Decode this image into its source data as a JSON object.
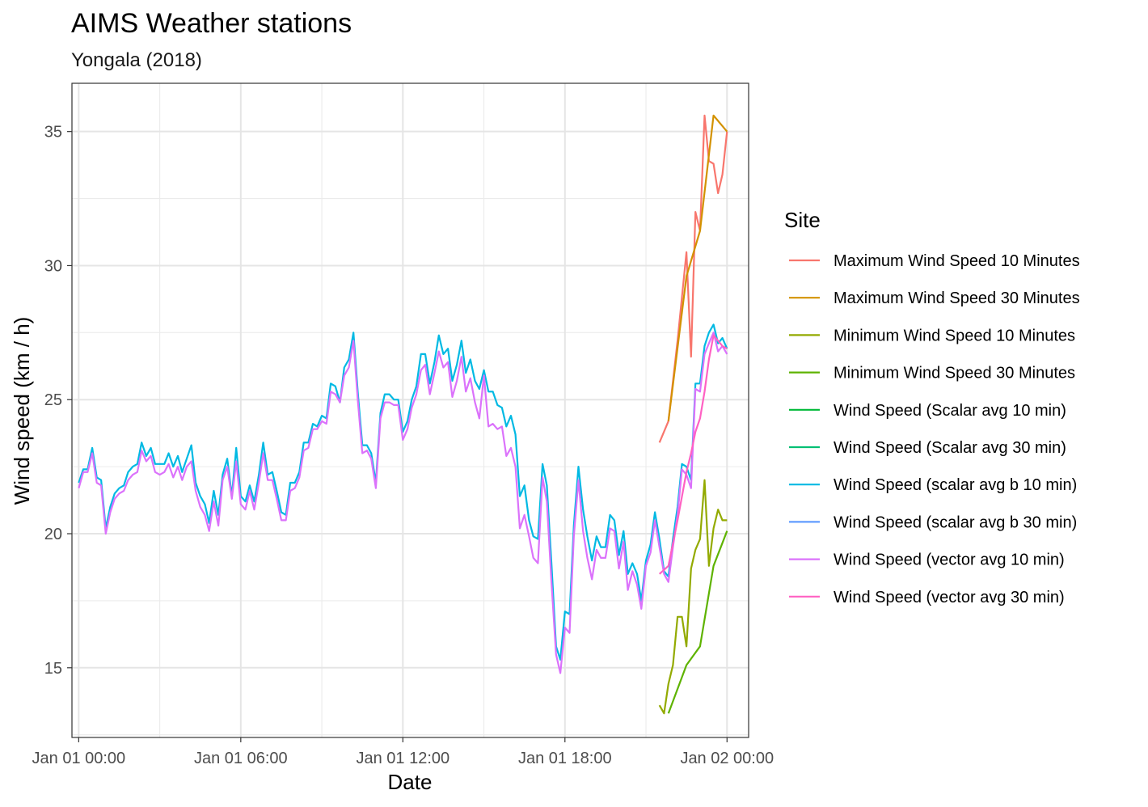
{
  "chart_data": {
    "type": "line",
    "title": "AIMS Weather stations",
    "subtitle": "Yongala (2018)",
    "xlabel": "Date",
    "ylabel": "Wind speed (km / h)",
    "legend_title": "Site",
    "legend_position": "right",
    "grid": true,
    "xlim": [
      -0.25,
      24.8
    ],
    "ylim": [
      12.4,
      36.8
    ],
    "x_ticks": [
      {
        "value": 0,
        "label": "Jan 01 00:00"
      },
      {
        "value": 6,
        "label": "Jan 01 06:00"
      },
      {
        "value": 12,
        "label": "Jan 01 12:00"
      },
      {
        "value": 18,
        "label": "Jan 01 18:00"
      },
      {
        "value": 24,
        "label": "Jan 02 00:00"
      }
    ],
    "y_ticks": [
      15,
      20,
      25,
      30,
      35
    ],
    "series": [
      {
        "name": "Maximum Wind Speed 10 Minutes",
        "color": "#F8766D",
        "x": [
          21.5,
          21.83,
          22.17,
          22.5,
          22.67,
          22.83,
          23.0,
          23.17,
          23.33,
          23.5,
          23.67,
          23.83,
          24.0
        ],
        "y": [
          23.4,
          24.2,
          27.2,
          30.5,
          26.6,
          32.0,
          31.3,
          35.6,
          33.9,
          33.8,
          32.7,
          33.4,
          35.0
        ]
      },
      {
        "name": "Maximum Wind Speed 30 Minutes",
        "color": "#D39200",
        "x": [
          21.83,
          22.5,
          23.0,
          23.5,
          24.0
        ],
        "y": [
          24.2,
          29.6,
          31.3,
          35.6,
          35.0
        ]
      },
      {
        "name": "Minimum Wind Speed 10 Minutes",
        "color": "#93AA00",
        "x": [
          21.5,
          21.67,
          21.83,
          22.0,
          22.17,
          22.33,
          22.5,
          22.67,
          22.83,
          23.0,
          23.17,
          23.33,
          23.5,
          23.67,
          23.83,
          24.0
        ],
        "y": [
          13.6,
          13.3,
          14.4,
          15.1,
          16.9,
          16.9,
          15.8,
          18.7,
          19.4,
          19.8,
          22.0,
          18.8,
          20.2,
          20.9,
          20.5,
          20.5
        ]
      },
      {
        "name": "Minimum Wind Speed 30 Minutes",
        "color": "#5EB300",
        "x": [
          21.83,
          22.5,
          23.0,
          23.5,
          24.0
        ],
        "y": [
          13.3,
          15.1,
          15.8,
          18.8,
          20.1
        ]
      },
      {
        "name": "Wind Speed (Scalar avg 10 min)",
        "color": "#00BA38",
        "x": [],
        "y": []
      },
      {
        "name": "Wind Speed (Scalar avg 30 min)",
        "color": "#00BF74",
        "x": [],
        "y": []
      },
      {
        "name": "Wind Speed (scalar avg b 10 min)",
        "color": "#00B9E3",
        "x": [
          0.0,
          0.17,
          0.33,
          0.5,
          0.67,
          0.83,
          1.0,
          1.17,
          1.33,
          1.5,
          1.67,
          1.83,
          2.0,
          2.17,
          2.33,
          2.5,
          2.67,
          2.83,
          3.0,
          3.17,
          3.33,
          3.5,
          3.67,
          3.83,
          4.0,
          4.17,
          4.33,
          4.5,
          4.67,
          4.83,
          5.0,
          5.17,
          5.33,
          5.5,
          5.67,
          5.83,
          6.0,
          6.17,
          6.33,
          6.5,
          6.67,
          6.83,
          7.0,
          7.17,
          7.33,
          7.5,
          7.67,
          7.83,
          8.0,
          8.17,
          8.33,
          8.5,
          8.67,
          8.83,
          9.0,
          9.17,
          9.33,
          9.5,
          9.67,
          9.83,
          10.0,
          10.17,
          10.33,
          10.5,
          10.67,
          10.83,
          11.0,
          11.17,
          11.33,
          11.5,
          11.67,
          11.83,
          12.0,
          12.17,
          12.33,
          12.5,
          12.67,
          12.83,
          13.0,
          13.17,
          13.33,
          13.5,
          13.67,
          13.83,
          14.0,
          14.17,
          14.33,
          14.5,
          14.67,
          14.83,
          15.0,
          15.17,
          15.33,
          15.5,
          15.67,
          15.83,
          16.0,
          16.17,
          16.33,
          16.5,
          16.67,
          16.83,
          17.0,
          17.17,
          17.33,
          17.5,
          17.67,
          17.83,
          18.0,
          18.17,
          18.33,
          18.5,
          18.67,
          18.83,
          19.0,
          19.17,
          19.33,
          19.5,
          19.67,
          19.83,
          20.0,
          20.17,
          20.33,
          20.5,
          20.67,
          20.83,
          21.0,
          21.17,
          21.33,
          21.5,
          21.67,
          21.83,
          22.0,
          22.17,
          22.33,
          22.5,
          22.67,
          22.83,
          23.0,
          23.17,
          23.33,
          23.5,
          23.67,
          23.83,
          24.0
        ],
        "y": [
          21.9,
          22.4,
          22.4,
          23.2,
          22.1,
          22.0,
          20.2,
          21.0,
          21.5,
          21.7,
          21.8,
          22.3,
          22.5,
          22.6,
          23.4,
          22.9,
          23.2,
          22.6,
          22.6,
          22.6,
          23.0,
          22.5,
          22.9,
          22.3,
          22.8,
          23.3,
          21.9,
          21.4,
          21.1,
          20.4,
          21.6,
          20.7,
          22.2,
          22.8,
          21.4,
          23.2,
          21.4,
          21.2,
          21.8,
          21.2,
          22.2,
          23.4,
          22.2,
          22.3,
          21.6,
          20.8,
          20.7,
          21.9,
          21.9,
          22.3,
          23.4,
          23.4,
          24.1,
          24.0,
          24.4,
          24.3,
          25.6,
          25.5,
          24.9,
          26.2,
          26.5,
          27.5,
          25.3,
          23.3,
          23.3,
          23.0,
          21.9,
          24.5,
          25.2,
          25.2,
          25.0,
          25.0,
          23.8,
          24.2,
          25.0,
          25.5,
          26.7,
          26.7,
          25.6,
          26.4,
          27.4,
          26.7,
          26.9,
          25.7,
          26.3,
          27.2,
          26.0,
          26.5,
          25.7,
          25.4,
          26.1,
          25.3,
          25.3,
          24.8,
          24.7,
          24.0,
          24.4,
          23.7,
          21.4,
          21.8,
          20.5,
          19.9,
          19.8,
          22.6,
          21.8,
          18.9,
          15.8,
          15.3,
          17.1,
          17.0,
          20.3,
          22.5,
          20.9,
          19.9,
          19.0,
          19.9,
          19.5,
          19.5,
          20.7,
          20.5,
          19.2,
          20.1,
          18.5,
          18.9,
          18.5,
          17.5,
          19.0,
          19.6,
          20.8,
          19.8,
          18.6,
          18.4,
          19.8,
          21.0,
          22.6,
          22.5,
          22.0,
          25.6,
          25.6,
          27.0,
          27.5,
          27.8,
          27.1,
          27.3,
          26.9
        ]
      },
      {
        "name": "Wind Speed (scalar avg b 30 min)",
        "color": "#619CFF",
        "x": [],
        "y": []
      },
      {
        "name": "Wind Speed (vector avg 10 min)",
        "color": "#DB72FB",
        "x": [
          0.0,
          0.17,
          0.33,
          0.5,
          0.67,
          0.83,
          1.0,
          1.17,
          1.33,
          1.5,
          1.67,
          1.83,
          2.0,
          2.17,
          2.33,
          2.5,
          2.67,
          2.83,
          3.0,
          3.17,
          3.33,
          3.5,
          3.67,
          3.83,
          4.0,
          4.17,
          4.33,
          4.5,
          4.67,
          4.83,
          5.0,
          5.17,
          5.33,
          5.5,
          5.67,
          5.83,
          6.0,
          6.17,
          6.33,
          6.5,
          6.67,
          6.83,
          7.0,
          7.17,
          7.33,
          7.5,
          7.67,
          7.83,
          8.0,
          8.17,
          8.33,
          8.5,
          8.67,
          8.83,
          9.0,
          9.17,
          9.33,
          9.5,
          9.67,
          9.83,
          10.0,
          10.17,
          10.33,
          10.5,
          10.67,
          10.83,
          11.0,
          11.17,
          11.33,
          11.5,
          11.67,
          11.83,
          12.0,
          12.17,
          12.33,
          12.5,
          12.67,
          12.83,
          13.0,
          13.17,
          13.33,
          13.5,
          13.67,
          13.83,
          14.0,
          14.17,
          14.33,
          14.5,
          14.67,
          14.83,
          15.0,
          15.17,
          15.33,
          15.5,
          15.67,
          15.83,
          16.0,
          16.17,
          16.33,
          16.5,
          16.67,
          16.83,
          17.0,
          17.17,
          17.33,
          17.5,
          17.67,
          17.83,
          18.0,
          18.17,
          18.33,
          18.5,
          18.67,
          18.83,
          19.0,
          19.17,
          19.33,
          19.5,
          19.67,
          19.83,
          20.0,
          20.17,
          20.33,
          20.5,
          20.67,
          20.83,
          21.0,
          21.17,
          21.33,
          21.5,
          21.67,
          21.83,
          22.0,
          22.17,
          22.33,
          22.5,
          22.67,
          22.83,
          23.0,
          23.17,
          23.33,
          23.5,
          23.67,
          23.83,
          24.0
        ],
        "y": [
          21.7,
          22.3,
          22.3,
          23.0,
          21.9,
          21.8,
          20.0,
          20.8,
          21.3,
          21.5,
          21.6,
          22.0,
          22.2,
          22.3,
          23.1,
          22.7,
          22.9,
          22.3,
          22.2,
          22.3,
          22.6,
          22.1,
          22.5,
          22.0,
          22.5,
          22.7,
          21.6,
          21.0,
          20.7,
          20.1,
          21.2,
          20.3,
          22.0,
          22.5,
          21.3,
          22.7,
          21.1,
          20.9,
          21.6,
          20.9,
          21.9,
          23.0,
          22.0,
          22.0,
          21.3,
          20.5,
          20.5,
          21.6,
          21.7,
          22.1,
          23.1,
          23.2,
          23.9,
          23.9,
          24.2,
          24.1,
          25.3,
          25.2,
          24.9,
          25.9,
          26.2,
          27.2,
          25.0,
          23.0,
          23.1,
          22.8,
          21.7,
          24.3,
          24.9,
          24.9,
          24.8,
          24.8,
          23.5,
          23.9,
          24.7,
          25.2,
          26.1,
          26.3,
          25.2,
          26.0,
          26.8,
          26.2,
          26.4,
          25.1,
          25.7,
          26.6,
          25.3,
          25.8,
          24.9,
          24.3,
          25.9,
          24.0,
          24.1,
          23.9,
          24.0,
          22.9,
          23.2,
          22.5,
          20.2,
          20.7,
          19.9,
          19.1,
          18.9,
          22.1,
          21.2,
          18.2,
          15.5,
          14.8,
          16.5,
          16.3,
          19.9,
          22.0,
          20.1,
          19.1,
          18.3,
          19.4,
          19.1,
          19.1,
          20.2,
          20.1,
          18.7,
          19.7,
          17.9,
          18.6,
          18.1,
          17.2,
          18.8,
          19.3,
          20.5,
          19.5,
          18.5,
          18.2,
          19.5,
          20.7,
          22.4,
          22.2,
          21.7,
          25.4,
          25.3,
          26.7,
          27.1,
          27.5,
          26.8,
          27.0,
          26.7
        ]
      },
      {
        "name": "Wind Speed (vector avg 30 min)",
        "color": "#FF61C3",
        "x": [
          21.5,
          21.83,
          22.17,
          22.5,
          22.67,
          22.83,
          23.0,
          23.17,
          23.33,
          23.5,
          23.67,
          23.83,
          24.0
        ],
        "y": [
          18.5,
          18.8,
          20.5,
          22.3,
          23.0,
          23.8,
          24.3,
          25.3,
          26.5,
          27.4,
          27.2,
          27.0,
          26.9
        ]
      }
    ]
  }
}
